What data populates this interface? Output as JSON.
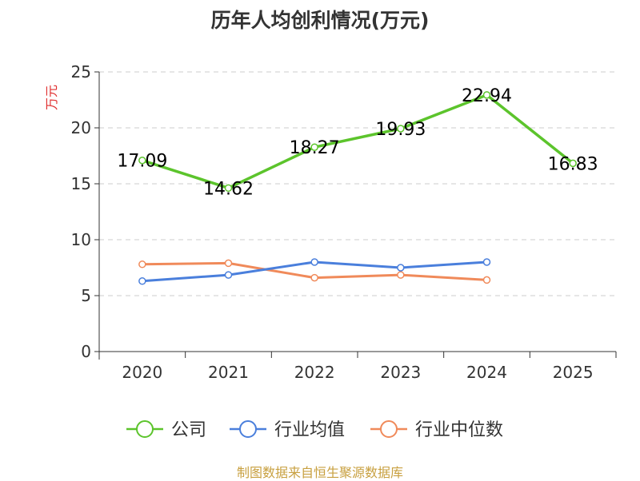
{
  "title": "历年人均创利情况(万元)",
  "footer": "制图数据来自恒生聚源数据库",
  "chart_data": {
    "type": "line",
    "title": "历年人均创利情况(万元)",
    "xlabel": "",
    "ylabel": "万元",
    "ylabel_color": "#e03030",
    "categories": [
      "2020",
      "2021",
      "2022",
      "2023",
      "2024",
      "2025"
    ],
    "ylim": [
      0,
      25
    ],
    "yticks": [
      0,
      5,
      10,
      15,
      20,
      25
    ],
    "grid": "horizontal dashed",
    "legend": "bottom",
    "series": [
      {
        "name": "公司",
        "color": "#5cc42c",
        "values": [
          17.09,
          14.62,
          18.27,
          19.93,
          22.94,
          16.83
        ],
        "data_labels": [
          "17.09",
          "14.62",
          "18.27",
          "19.93",
          "22.94",
          "16.83"
        ]
      },
      {
        "name": "行业均值",
        "color": "#4a7fdc",
        "values": [
          6.3,
          6.85,
          8.0,
          7.5,
          8.0,
          null
        ]
      },
      {
        "name": "行业中位数",
        "color": "#f08a5a",
        "values": [
          7.8,
          7.9,
          6.6,
          6.85,
          6.4,
          null
        ]
      }
    ]
  }
}
